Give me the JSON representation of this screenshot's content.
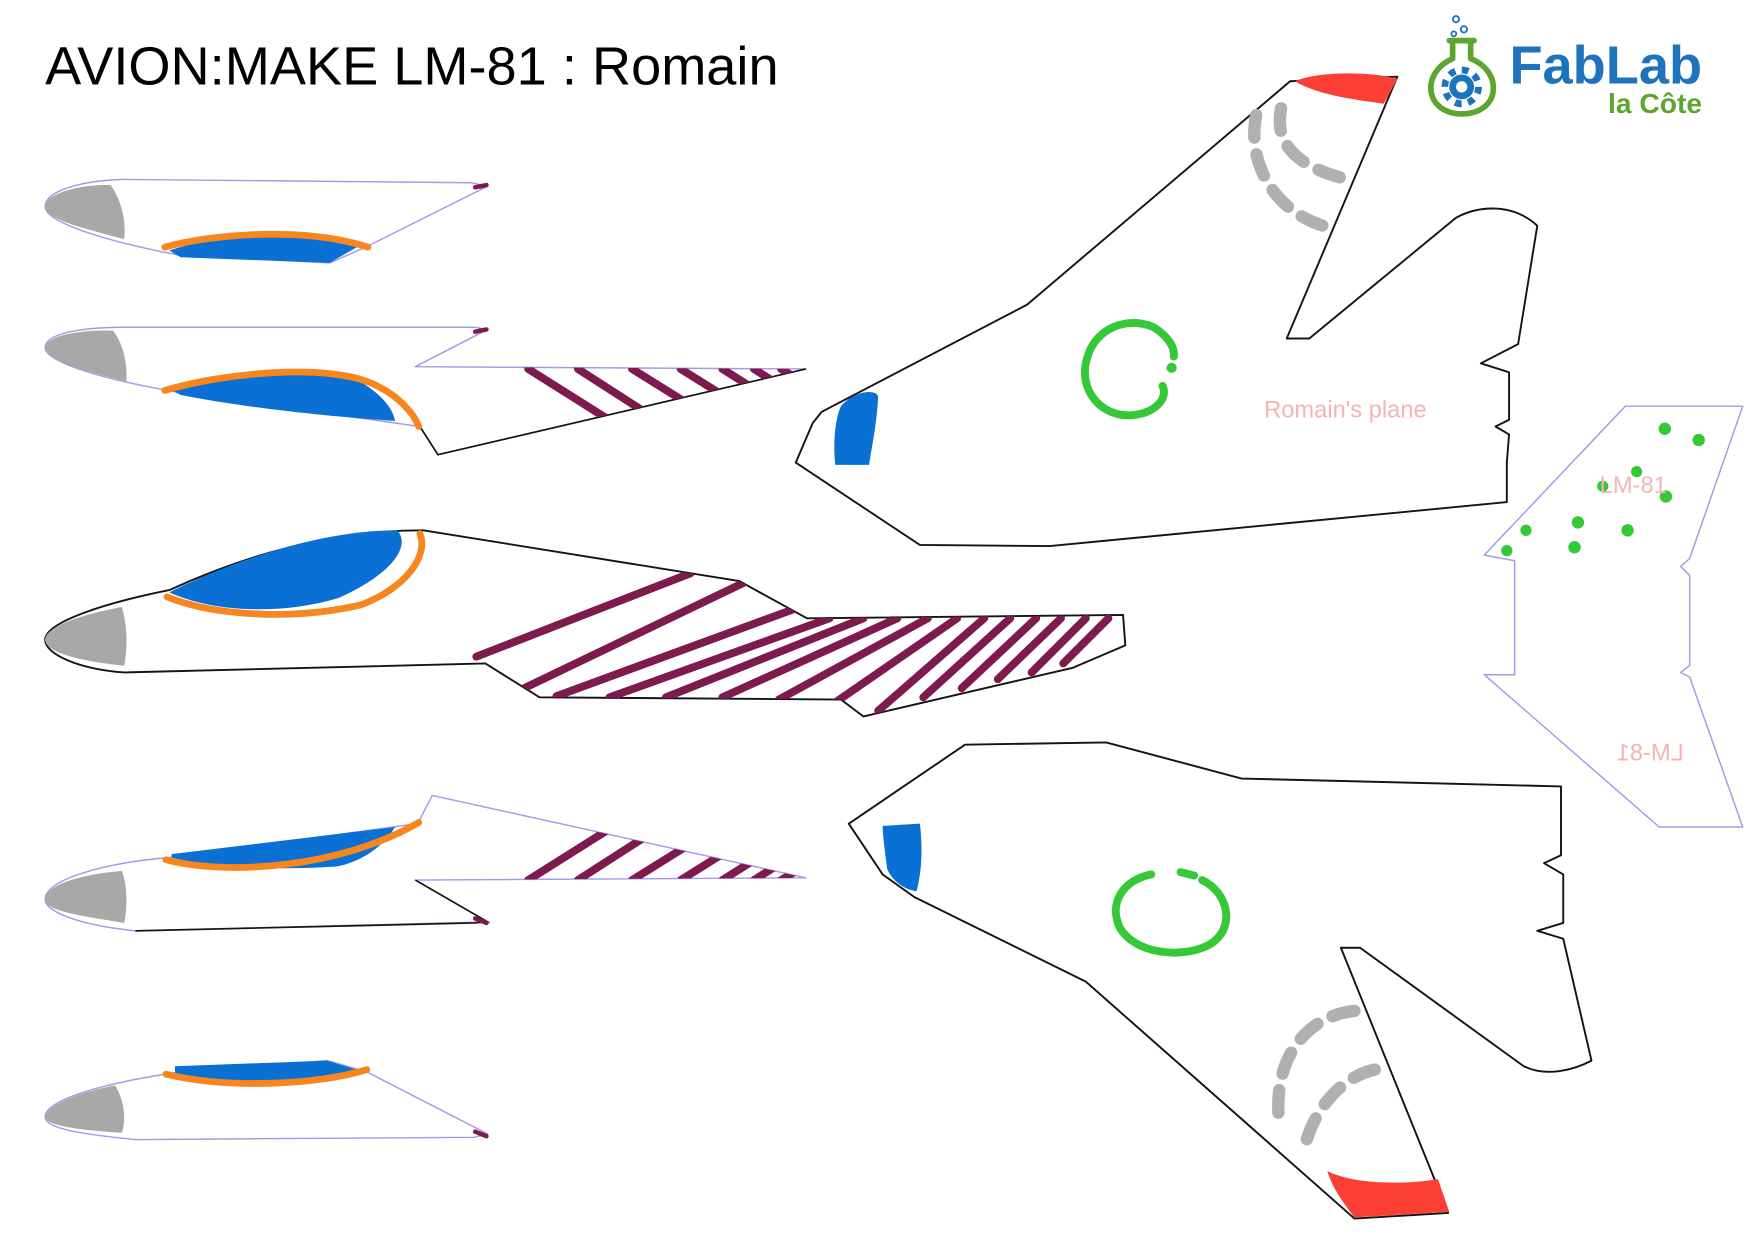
{
  "title": "AVION:MAKE LM-81 : Romain",
  "logo": {
    "name": "FabLab",
    "tagline": "la Côte",
    "icon": "flask-gear-icon"
  },
  "labels": {
    "wing": "Romain's plane",
    "tail": "LM-81",
    "tail_mirrored": "LM-81"
  },
  "colors": {
    "outline": "#141414",
    "outline_light": "#a49ae8",
    "nose": "#a8a8a8",
    "canopy": "#0b70d3",
    "canopy_trim": "#f7861f",
    "stripes": "#7d1b4f",
    "wingtip": "#fc3f34",
    "exhaust_marks": "#b0b0b0",
    "roundel": "#35c837",
    "label": "#f4b4b4",
    "logo_blue": "#1e73bc",
    "logo_green": "#5ea52f"
  }
}
